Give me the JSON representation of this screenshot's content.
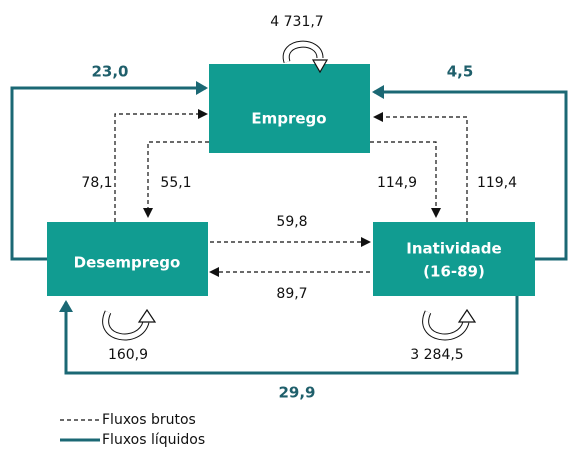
{
  "nodes": [
    {
      "label": "Emprego"
    },
    {
      "label": "Desemprego"
    },
    {
      "lines": [
        "Inatividade",
        "(16-89)"
      ]
    }
  ],
  "flows": {
    "employment_stay": "4 731,7",
    "unemployment_stay": "160,9",
    "inactivity_stay": "3 284,5",
    "unemp_to_emp": "78,1",
    "emp_to_unemp": "55,1",
    "emp_to_inact": "114,9",
    "inact_to_emp": "119,4",
    "unemp_to_inact": "59,8",
    "inact_to_unemp": "89,7",
    "net_unemp_emp": "23,0",
    "net_inact_emp": "4,5",
    "net_inact_unemp": "29,9"
  },
  "legend": {
    "gross": "Fluxos brutos",
    "net": "Fluxos líquidos"
  }
}
